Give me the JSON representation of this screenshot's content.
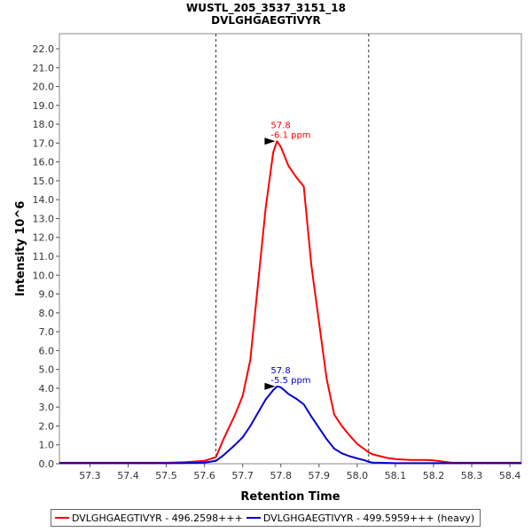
{
  "chart_data": {
    "type": "line",
    "title": "WUSTL_205_3537_3151_18",
    "subtitle": "DVLGHGAEGTIVYR",
    "xlabel": "Retention Time",
    "ylabel": "Intensity 10^6",
    "xlim": [
      57.22,
      58.43
    ],
    "ylim": [
      0,
      22.8
    ],
    "x_ticks": [
      "57.3",
      "57.4",
      "57.5",
      "57.6",
      "57.7",
      "57.8",
      "57.9",
      "58.0",
      "58.1",
      "58.2",
      "58.3",
      "58.4"
    ],
    "y_ticks": [
      "0.0",
      "1.0",
      "2.0",
      "3.0",
      "4.0",
      "5.0",
      "6.0",
      "7.0",
      "8.0",
      "9.0",
      "10.0",
      "11.0",
      "12.0",
      "13.0",
      "14.0",
      "15.0",
      "16.0",
      "17.0",
      "18.0",
      "19.0",
      "20.0",
      "21.0",
      "22.0"
    ],
    "vlines": [
      57.63,
      58.03
    ],
    "series": [
      {
        "name": "DVLGHGAEGTIVYR - 496.2598+++",
        "color": "#ff0000",
        "x": [
          57.22,
          57.3,
          57.4,
          57.5,
          57.55,
          57.6,
          57.63,
          57.65,
          57.68,
          57.7,
          57.72,
          57.74,
          57.76,
          57.78,
          57.79,
          57.8,
          57.82,
          57.84,
          57.86,
          57.88,
          57.9,
          57.92,
          57.94,
          57.96,
          57.98,
          58.0,
          58.02,
          58.03,
          58.04,
          58.06,
          58.08,
          58.1,
          58.12,
          58.14,
          58.16,
          58.18,
          58.2,
          58.23,
          58.25,
          58.3,
          58.43
        ],
        "values": [
          0.05,
          0.05,
          0.05,
          0.05,
          0.08,
          0.15,
          0.35,
          1.3,
          2.6,
          3.6,
          5.5,
          9.5,
          13.5,
          16.5,
          17.1,
          16.8,
          15.8,
          15.2,
          14.7,
          10.5,
          7.5,
          4.5,
          2.6,
          2.0,
          1.5,
          1.05,
          0.75,
          0.6,
          0.5,
          0.4,
          0.3,
          0.25,
          0.22,
          0.2,
          0.2,
          0.2,
          0.18,
          0.1,
          0.05,
          0.05,
          0.05
        ]
      },
      {
        "name": "DVLGHGAEGTIVYR - 499.5959+++ (heavy)",
        "color": "#0000cc",
        "x": [
          57.22,
          57.3,
          57.4,
          57.5,
          57.55,
          57.6,
          57.63,
          57.65,
          57.68,
          57.7,
          57.72,
          57.74,
          57.76,
          57.78,
          57.79,
          57.8,
          57.82,
          57.84,
          57.86,
          57.88,
          57.9,
          57.92,
          57.94,
          57.96,
          57.98,
          58.0,
          58.02,
          58.03,
          58.04,
          58.06,
          58.08,
          58.1,
          58.12,
          58.14,
          58.16,
          58.18,
          58.2,
          58.23,
          58.25,
          58.3,
          58.43
        ],
        "values": [
          0.03,
          0.03,
          0.03,
          0.03,
          0.04,
          0.06,
          0.15,
          0.45,
          1.0,
          1.4,
          2.0,
          2.7,
          3.4,
          3.9,
          4.1,
          4.05,
          3.7,
          3.45,
          3.15,
          2.5,
          1.9,
          1.3,
          0.8,
          0.55,
          0.4,
          0.28,
          0.18,
          0.1,
          0.06,
          0.05,
          0.04,
          0.03,
          0.03,
          0.03,
          0.03,
          0.03,
          0.03,
          0.03,
          0.03,
          0.03,
          0.03
        ]
      }
    ],
    "annotations": [
      {
        "series": 0,
        "x": 57.79,
        "y": 17.1,
        "rt_label": "57.8",
        "ppm_label": "-6.1 ppm"
      },
      {
        "series": 1,
        "x": 57.79,
        "y": 4.1,
        "rt_label": "57.8",
        "ppm_label": "-5.5 ppm"
      }
    ],
    "legend_position": "bottom"
  }
}
